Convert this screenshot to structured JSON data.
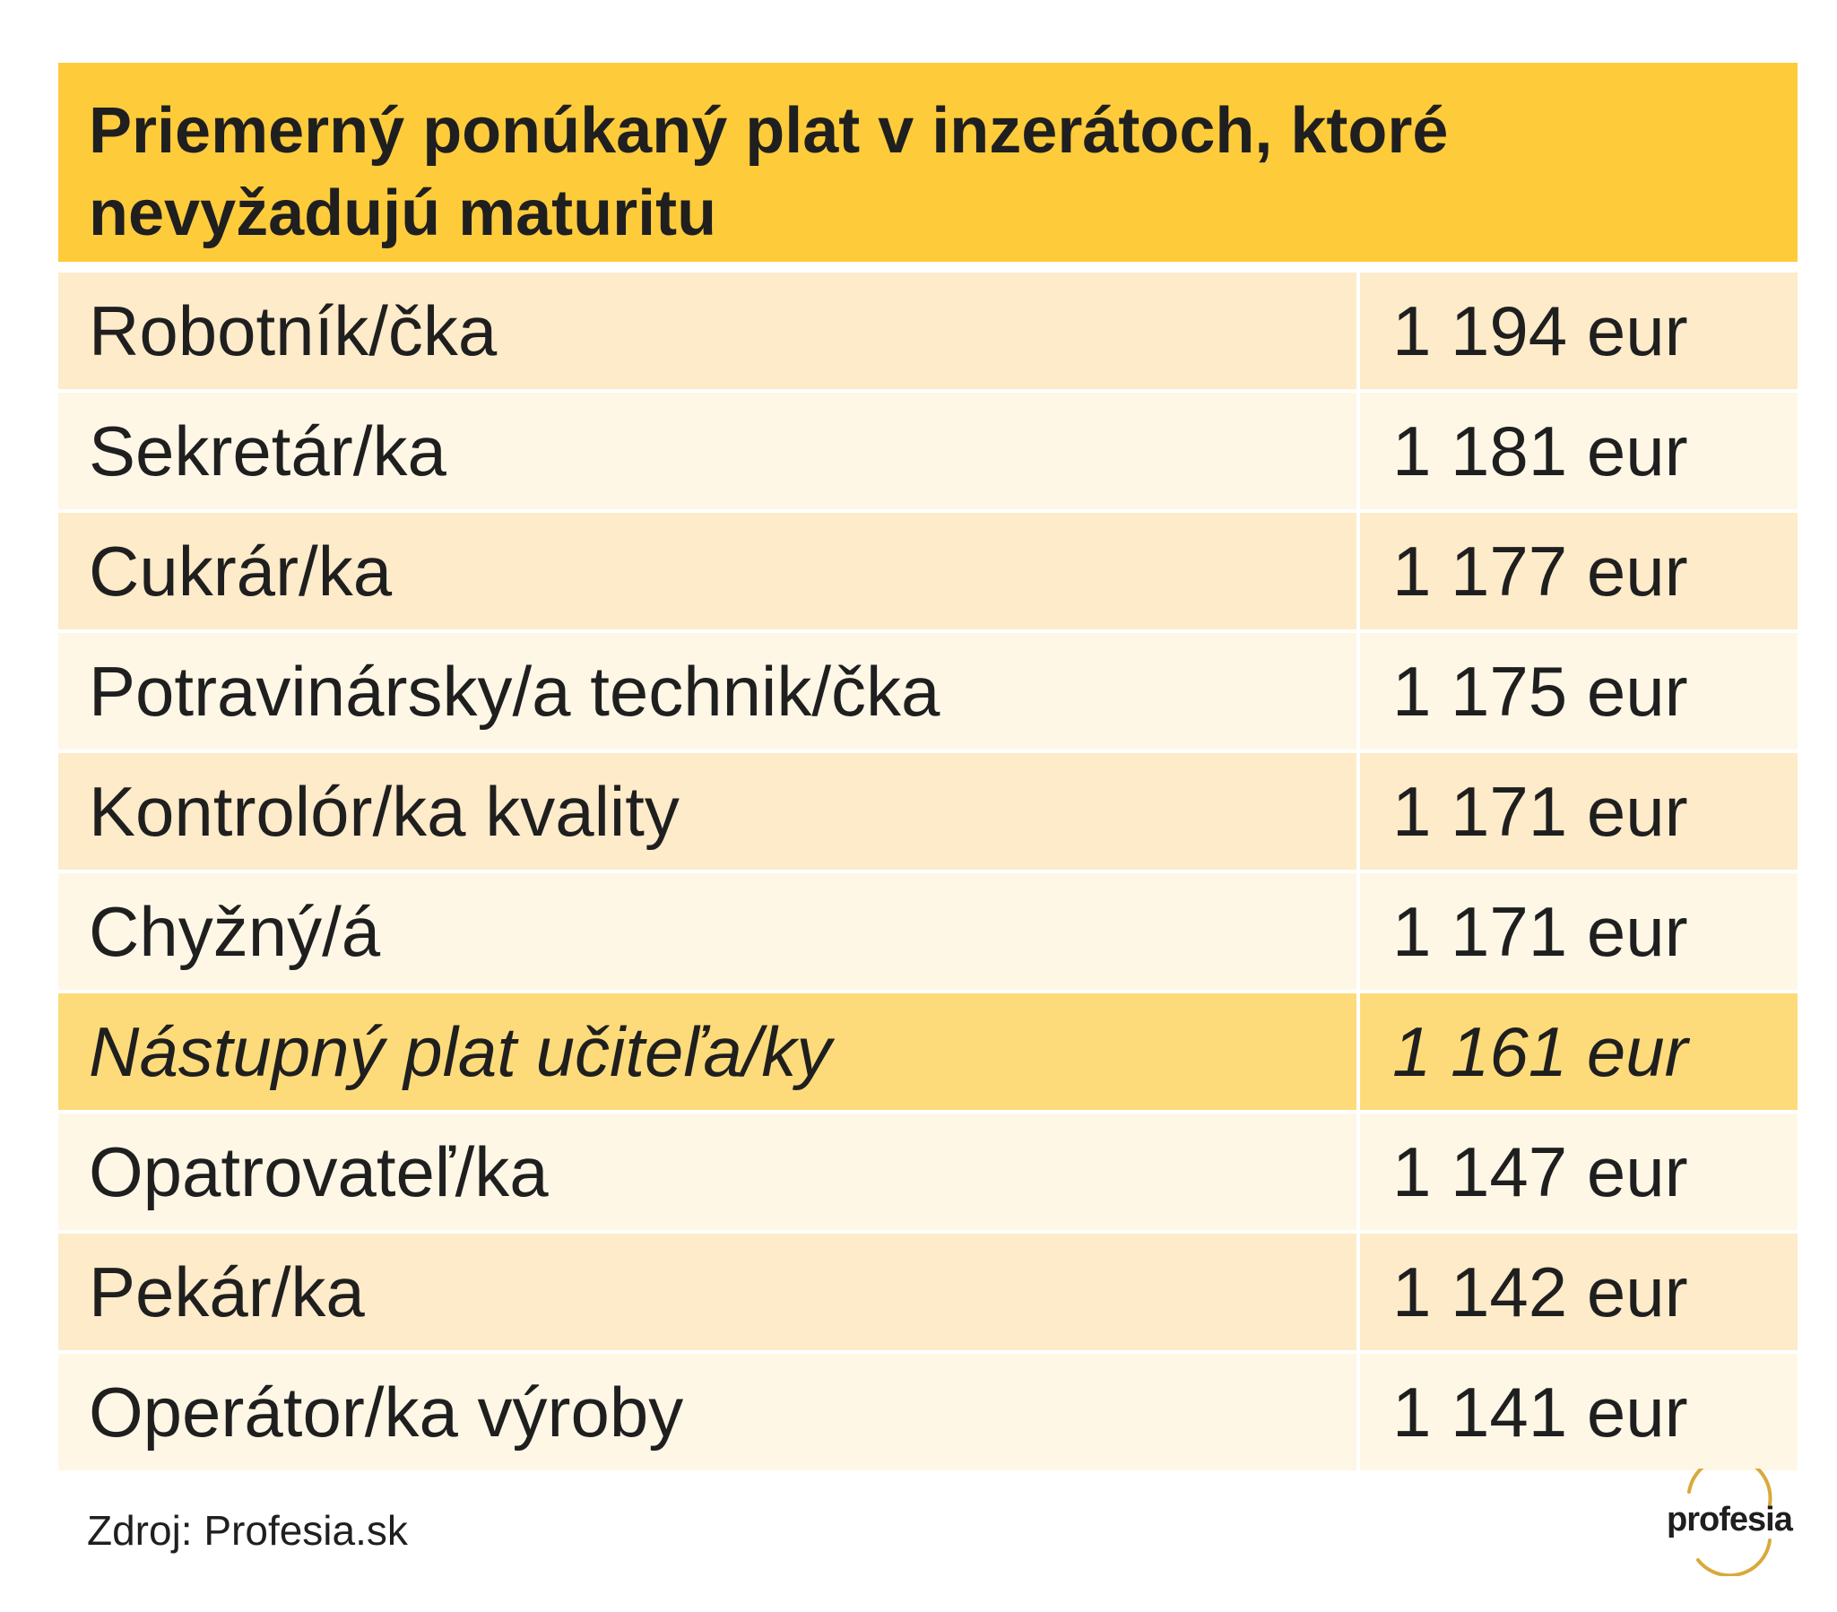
{
  "title": "Priemerný ponúkaný plat v inzerátoch, ktoré nevyžadujú maturitu",
  "rows": [
    {
      "job": "Robotník/čka",
      "salary": "1 194 eur"
    },
    {
      "job": "Sekretár/ka",
      "salary": "1 181 eur"
    },
    {
      "job": "Cukrár/ka",
      "salary": "1 177 eur"
    },
    {
      "job": "Potravinársky/a technik/čka",
      "salary": "1 175 eur"
    },
    {
      "job": "Kontrolór/ka kvality",
      "salary": "1 171 eur"
    },
    {
      "job": "Chyžný/á",
      "salary": "1 171 eur"
    },
    {
      "job": "Nástupný plat učiteľa/ky",
      "salary": "1 161 eur"
    },
    {
      "job": "Opatrovateľ/ka",
      "salary": "1 147 eur"
    },
    {
      "job": "Pekár/ka",
      "salary": "1 142 eur"
    },
    {
      "job": "Operátor/ka výroby",
      "salary": "1 141 eur"
    }
  ],
  "source": "Zdroj: Profesia.sk",
  "logo_text": "profesia",
  "colors": {
    "header": "#fecb3b",
    "row_odd": "#fdebc9",
    "row_even": "#fef7e6",
    "row_highlight": "#fedb7a",
    "logo_arc": "#d9a93a"
  }
}
